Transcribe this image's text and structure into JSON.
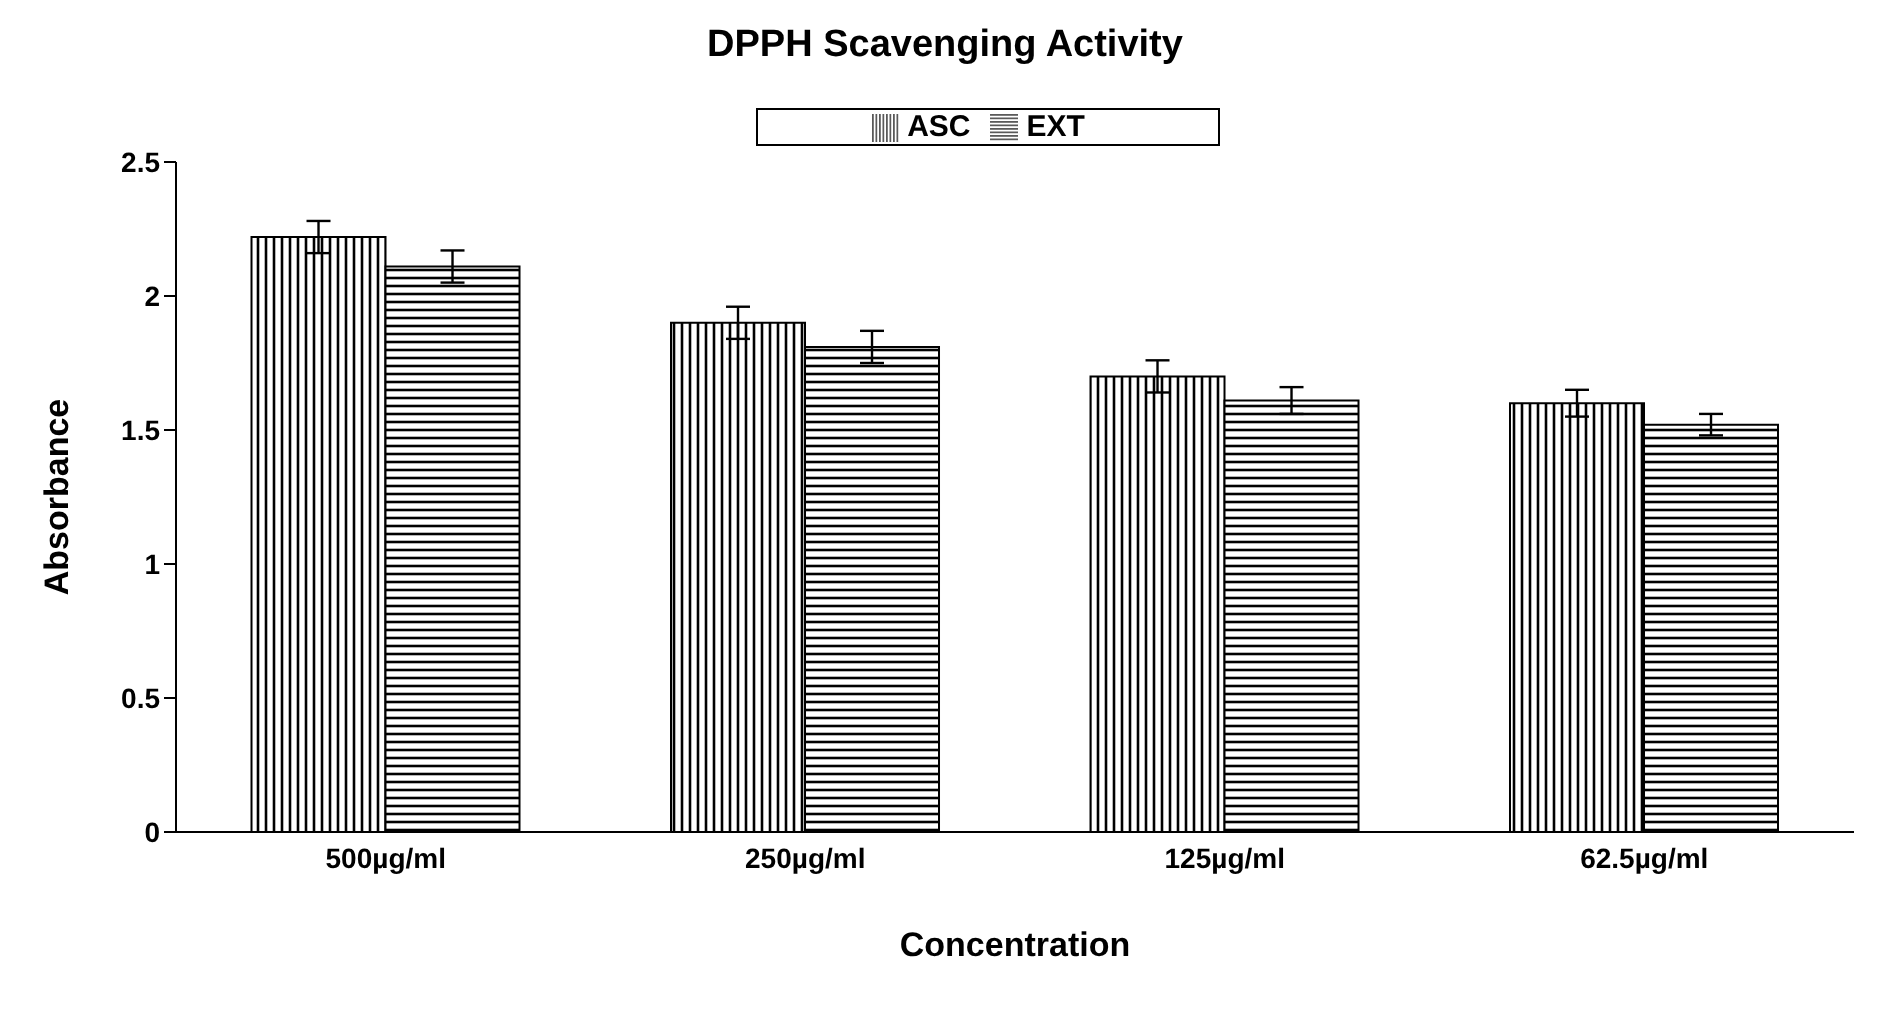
{
  "chart_data": {
    "type": "bar",
    "title": "DPPH Scavenging Activity",
    "xlabel": "Concentration",
    "ylabel": "Absorbance",
    "categories": [
      "500µg/ml",
      "250µg/ml",
      "125µg/ml",
      "62.5µg/ml"
    ],
    "series": [
      {
        "name": "ASC",
        "color": "#000000",
        "values": [
          2.22,
          1.9,
          1.7,
          1.6
        ],
        "errors": [
          0.06,
          0.06,
          0.06,
          0.05
        ]
      },
      {
        "name": "EXT",
        "color": "#000000",
        "values": [
          2.11,
          1.81,
          1.61,
          1.52
        ],
        "errors": [
          0.06,
          0.06,
          0.05,
          0.04
        ]
      }
    ],
    "ylim": [
      0,
      2.5
    ],
    "yticks": [
      0,
      0.5,
      1,
      1.5,
      2,
      2.5
    ],
    "grid": false,
    "legend": "top"
  }
}
